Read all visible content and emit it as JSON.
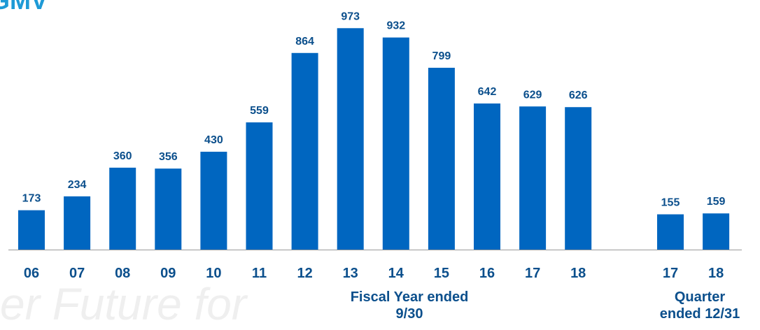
{
  "title": "GMV",
  "watermark": "er Future for",
  "colors": {
    "bar": "#0066c0",
    "label": "#0b4f8c",
    "title": "#1e9ad6",
    "axis": "#999999"
  },
  "group_labels": {
    "fiscal": [
      "Fiscal Year ended",
      "9/30"
    ],
    "quarter": [
      "Quarter",
      "ended 12/31"
    ]
  },
  "chart_data": {
    "type": "bar",
    "title": "GMV",
    "categories": [
      "06",
      "07",
      "08",
      "09",
      "10",
      "11",
      "12",
      "13",
      "14",
      "15",
      "16",
      "17",
      "18",
      "17",
      "18"
    ],
    "values": [
      173,
      234,
      360,
      356,
      430,
      559,
      864,
      973,
      932,
      799,
      642,
      629,
      626,
      155,
      159
    ],
    "groups": [
      "fiscal",
      "fiscal",
      "fiscal",
      "fiscal",
      "fiscal",
      "fiscal",
      "fiscal",
      "fiscal",
      "fiscal",
      "fiscal",
      "fiscal",
      "fiscal",
      "fiscal",
      "quarter",
      "quarter"
    ],
    "ylim": [
      0,
      1000
    ],
    "grid": false,
    "legend": "none"
  }
}
